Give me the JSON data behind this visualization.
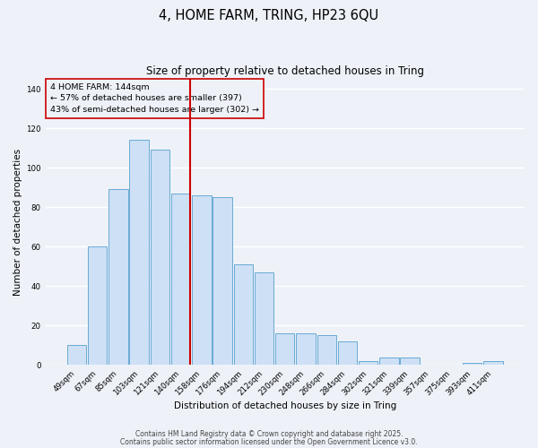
{
  "title": "4, HOME FARM, TRING, HP23 6QU",
  "subtitle": "Size of property relative to detached houses in Tring",
  "xlabel": "Distribution of detached houses by size in Tring",
  "ylabel": "Number of detached properties",
  "bar_labels": [
    "49sqm",
    "67sqm",
    "85sqm",
    "103sqm",
    "121sqm",
    "140sqm",
    "158sqm",
    "176sqm",
    "194sqm",
    "212sqm",
    "230sqm",
    "248sqm",
    "266sqm",
    "284sqm",
    "302sqm",
    "321sqm",
    "339sqm",
    "357sqm",
    "375sqm",
    "393sqm",
    "411sqm"
  ],
  "bar_values": [
    10,
    60,
    89,
    114,
    109,
    87,
    86,
    85,
    51,
    47,
    16,
    16,
    15,
    12,
    2,
    4,
    4,
    0,
    0,
    1,
    2
  ],
  "bar_color": "#cde0f5",
  "bar_edge_color": "#6aaad4",
  "vline_x_index": 5,
  "vline_color": "#cc0000",
  "annotation_title": "4 HOME FARM: 144sqm",
  "annotation_line1": "← 57% of detached houses are smaller (397)",
  "annotation_line2": "43% of semi-detached houses are larger (302) →",
  "annotation_box_color": "#cc0000",
  "ylim": [
    0,
    145
  ],
  "yticks": [
    0,
    20,
    40,
    60,
    80,
    100,
    120,
    140
  ],
  "footer1": "Contains HM Land Registry data © Crown copyright and database right 2025.",
  "footer2": "Contains public sector information licensed under the Open Government Licence v3.0.",
  "bg_color": "#eef2f8",
  "grid_color": "#ffffff",
  "title_fontsize": 10.5,
  "subtitle_fontsize": 8.5,
  "axis_label_fontsize": 7.5,
  "tick_fontsize": 6.2,
  "annotation_fontsize": 6.8,
  "footer_fontsize": 5.5
}
